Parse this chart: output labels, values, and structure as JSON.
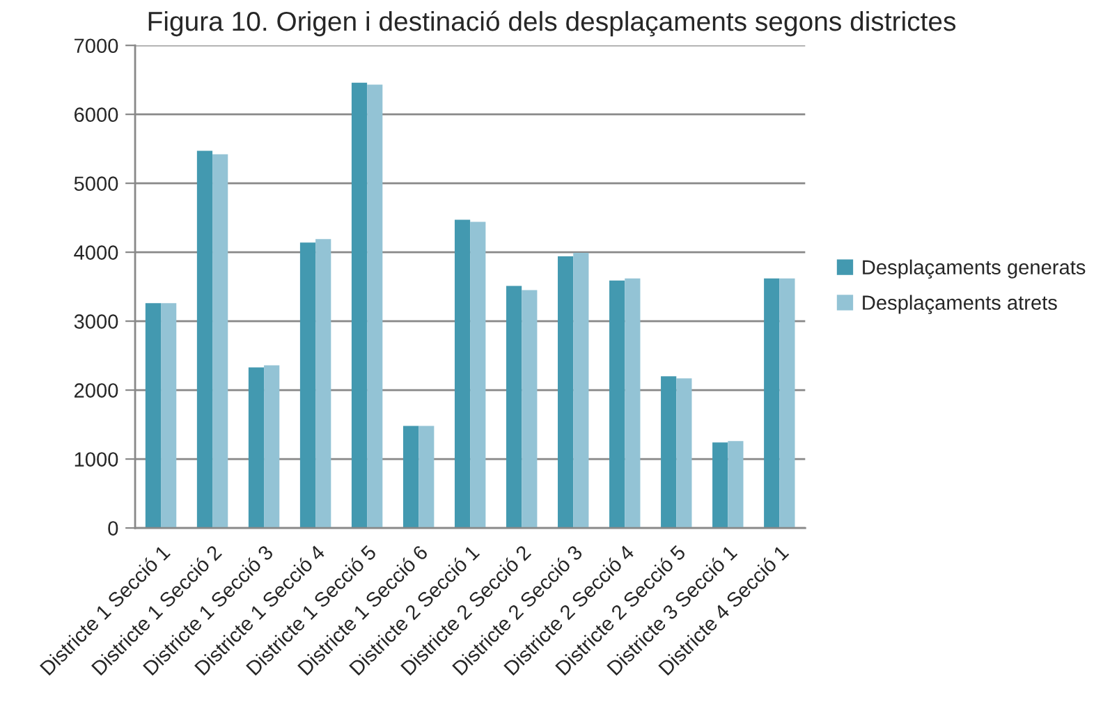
{
  "chart_data": {
    "type": "bar",
    "title": "Figura 10. Origen i destinació dels desplaçaments segons districtes",
    "categories": [
      "Districte 1 Secció 1",
      "Districte 1 Secció 2",
      "Districte 1 Secció 3",
      "Districte 1 Secció 4",
      "Districte 1 Secció 5",
      "Districte 1 Secció 6",
      "Districte 2 Secció 1",
      "Districte 2 Secció 2",
      "Districte 2 Secció 3",
      "Districte 2 Secció 4",
      "Districte 2 Secció 5",
      "Districte 3 Secció 1",
      "Districte 4 Secció 1"
    ],
    "series": [
      {
        "name": "Desplaçaments generats",
        "color": "#4399b0",
        "values": [
          3260,
          5470,
          2330,
          4140,
          6460,
          1480,
          4470,
          3510,
          3940,
          3590,
          2200,
          1240,
          3620
        ]
      },
      {
        "name": "Desplaçaments atrets",
        "color": "#93c3d5",
        "values": [
          3260,
          5420,
          2360,
          4190,
          6430,
          1480,
          4440,
          3450,
          3990,
          3620,
          2170,
          1260,
          3620
        ]
      }
    ],
    "ylim": [
      0,
      7000
    ],
    "yticks": [
      0,
      1000,
      2000,
      3000,
      4000,
      5000,
      6000,
      7000
    ],
    "grid": "y",
    "legend": "right"
  }
}
